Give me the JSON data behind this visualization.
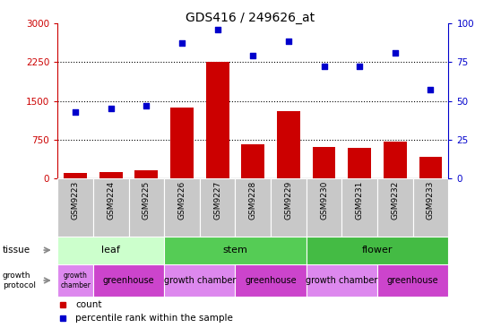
{
  "title": "GDS416 / 249626_at",
  "samples": [
    "GSM9223",
    "GSM9224",
    "GSM9225",
    "GSM9226",
    "GSM9227",
    "GSM9228",
    "GSM9229",
    "GSM9230",
    "GSM9231",
    "GSM9232",
    "GSM9233"
  ],
  "counts": [
    120,
    130,
    160,
    1370,
    2260,
    660,
    1310,
    610,
    600,
    710,
    420
  ],
  "percentiles": [
    43,
    45,
    47,
    87,
    96,
    79,
    88,
    72,
    72,
    81,
    57
  ],
  "ylim_left": [
    0,
    3000
  ],
  "ylim_right": [
    0,
    100
  ],
  "yticks_left": [
    0,
    750,
    1500,
    2250,
    3000
  ],
  "yticks_right": [
    0,
    25,
    50,
    75,
    100
  ],
  "bar_color": "#cc0000",
  "scatter_color": "#0000cc",
  "tissue_groups": [
    {
      "label": "leaf",
      "start": 0,
      "end": 3,
      "color": "#ccffcc"
    },
    {
      "label": "stem",
      "start": 3,
      "end": 7,
      "color": "#55cc55"
    },
    {
      "label": "flower",
      "start": 7,
      "end": 11,
      "color": "#44bb44"
    }
  ],
  "growth_groups": [
    {
      "label": "growth\nchamber",
      "start": 0,
      "end": 1,
      "color": "#dd88ee"
    },
    {
      "label": "greenhouse",
      "start": 1,
      "end": 3,
      "color": "#cc44cc"
    },
    {
      "label": "growth chamber",
      "start": 3,
      "end": 5,
      "color": "#dd88ee"
    },
    {
      "label": "greenhouse",
      "start": 5,
      "end": 7,
      "color": "#cc44cc"
    },
    {
      "label": "growth chamber",
      "start": 7,
      "end": 9,
      "color": "#dd88ee"
    },
    {
      "label": "greenhouse",
      "start": 9,
      "end": 11,
      "color": "#cc44cc"
    }
  ],
  "xticklabel_bg": "#c8c8c8",
  "tick_label_color_left": "#cc0000",
  "tick_label_color_right": "#0000cc"
}
